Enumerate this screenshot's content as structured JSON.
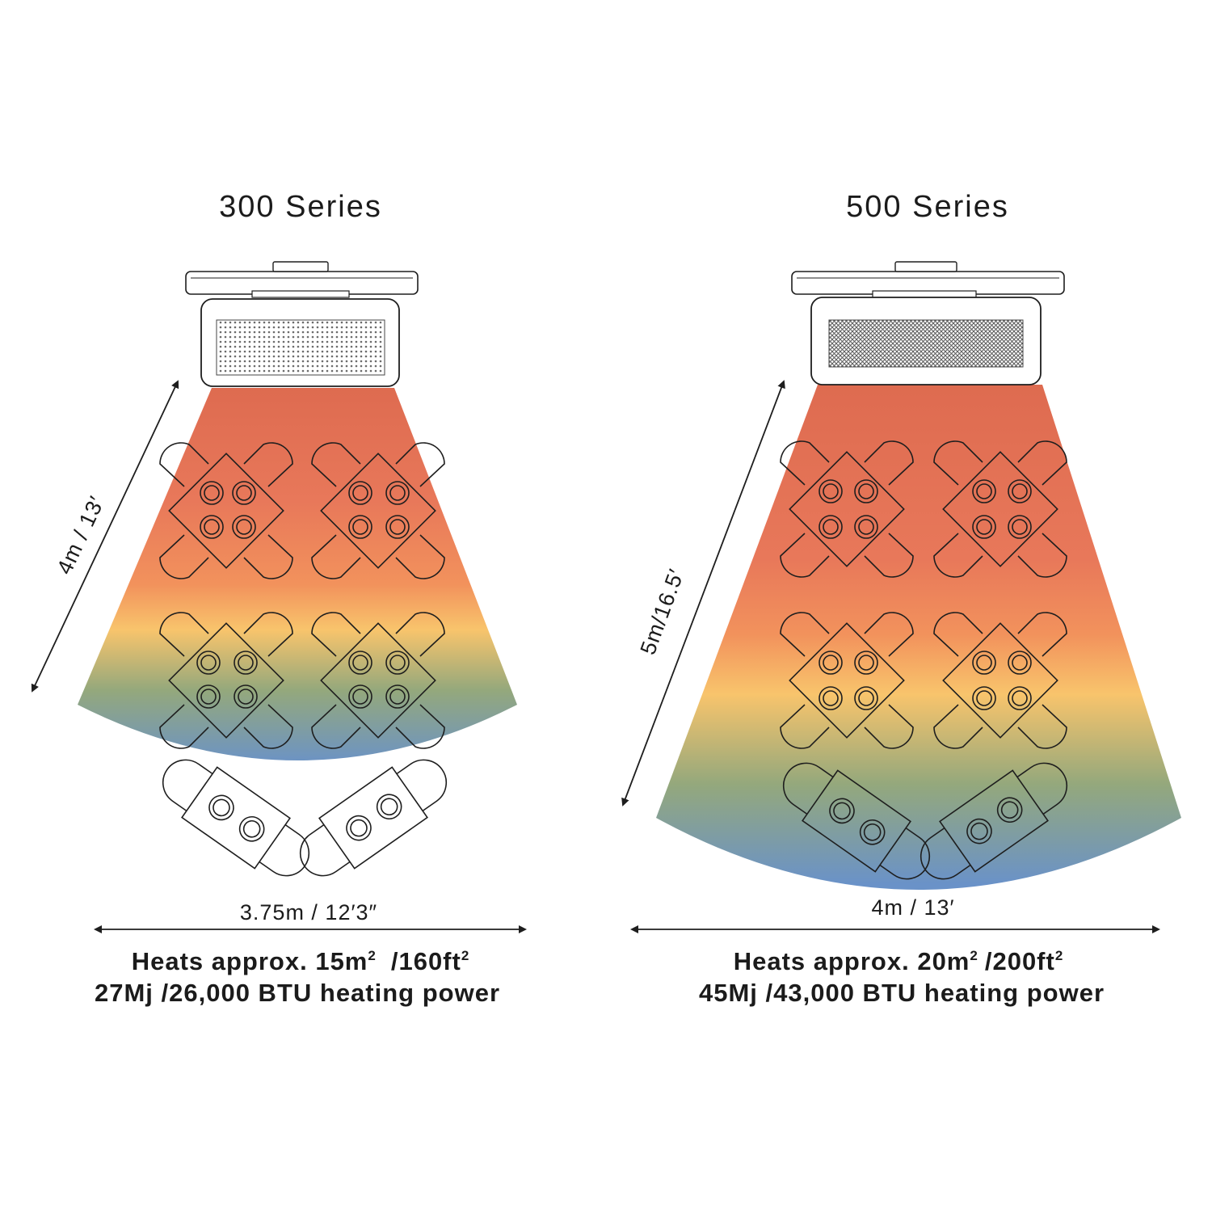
{
  "colors": {
    "heat_top": "#de6b50",
    "heat_orange": "#f2925c",
    "heat_yellow": "#f8c46c",
    "heat_green": "#94a87c",
    "heat_blue": "#6a92c8",
    "line": "#1e1e1e"
  },
  "left": {
    "title": "300 Series",
    "depth_label": "4m / 13′",
    "width_label": "3.75m / 12′3″",
    "area_prefix": "Heats approx. 15m",
    "area_sup1": "2",
    "area_mid": "/160ft",
    "area_sup2": "2",
    "power_line": "27Mj /26,000 BTU heating power"
  },
  "right": {
    "title": "500 Series",
    "depth_label": "5m/16.5′",
    "width_label": "4m / 13′",
    "area_prefix": "Heats approx. 20m",
    "area_sup1": "2",
    "area_mid": "/200ft",
    "area_sup2": "2",
    "power_line": "45Mj /43,000 BTU heating power"
  }
}
